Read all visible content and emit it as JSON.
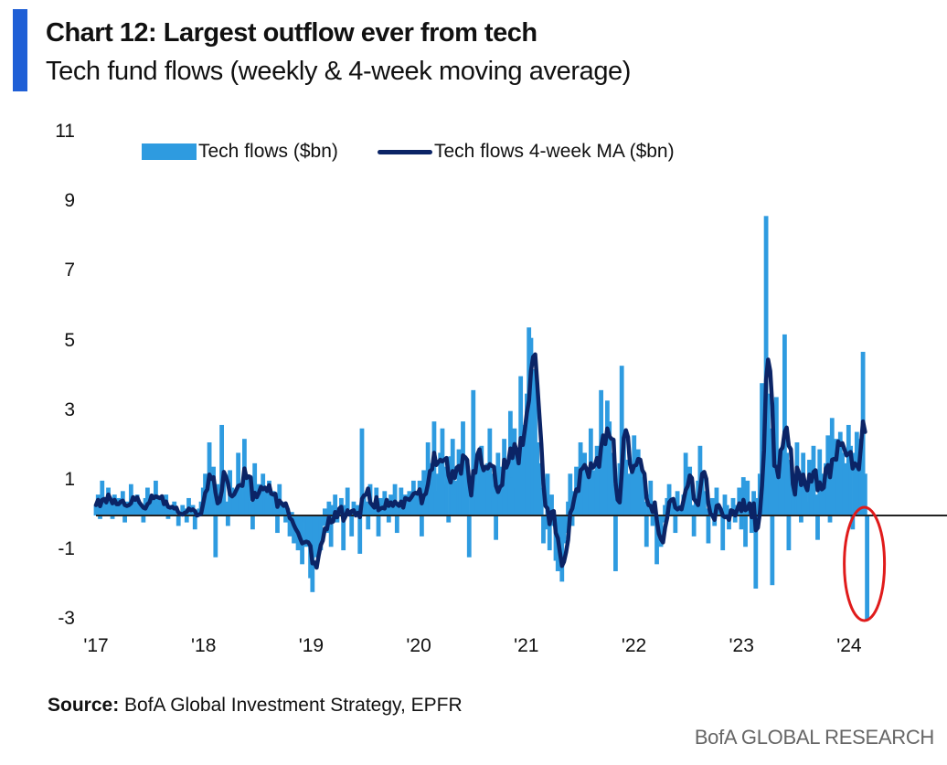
{
  "header": {
    "title": "Chart 12: Largest outflow ever from tech",
    "subtitle": "Tech fund flows (weekly & 4-week moving average)"
  },
  "source": {
    "label": "Source:",
    "text": " BofA Global Investment Strategy, EPFR"
  },
  "footer": "BofA GLOBAL RESEARCH",
  "colors": {
    "bars": "#2e9be0",
    "line": "#0b2466",
    "highlight": "#e01b1b",
    "accent": "#1f5fd6"
  },
  "chart_data": {
    "type": "bar+line",
    "legend": [
      "Tech flows ($bn)",
      "Tech flows 4-week MA ($bn)"
    ],
    "legend_position": "top",
    "ylim": [
      -3,
      11
    ],
    "yticks": [
      "11",
      "9",
      "7",
      "5",
      "3",
      "1",
      "-1",
      "-3"
    ],
    "ytick_values": [
      11,
      9,
      7,
      5,
      3,
      1,
      -1,
      -3
    ],
    "xticks": [
      "'17",
      "'18",
      "'19",
      "'20",
      "'21",
      "'22",
      "'23",
      "'24"
    ],
    "x_start_year": 2017,
    "frequency": "weekly",
    "grid": false,
    "annotation": "red ellipse around final week outflow (~-3.0)",
    "series": [
      {
        "name": "Tech flows ($bn)",
        "type": "bar",
        "values": [
          0.3,
          0.6,
          -0.1,
          1.0,
          0.4,
          0.2,
          0.8,
          0.5,
          -0.1,
          0.6,
          0.3,
          0.5,
          0.2,
          0.7,
          -0.2,
          0.4,
          0.3,
          0.9,
          0.5,
          0.1,
          0.6,
          0.3,
          0.2,
          -0.2,
          0.5,
          0.8,
          0.4,
          0.6,
          0.2,
          1.0,
          0.3,
          0.5,
          0.4,
          0.1,
          0.6,
          -0.1,
          0.3,
          0.2,
          0.4,
          0.0,
          -0.3,
          0.1,
          0.3,
          0.2,
          -0.2,
          0.5,
          0.1,
          0.3,
          -0.4,
          0.0,
          0.2,
          0.4,
          0.8,
          1.2,
          0.6,
          2.1,
          0.3,
          1.4,
          -1.2,
          0.9,
          0.5,
          2.6,
          1.0,
          0.4,
          -0.3,
          1.3,
          0.8,
          0.6,
          0.2,
          1.8,
          0.9,
          0.5,
          2.2,
          0.7,
          1.1,
          0.4,
          -0.4,
          1.5,
          0.6,
          0.9,
          0.3,
          1.2,
          0.8,
          0.5,
          1.0,
          0.2,
          0.7,
          0.6,
          -0.5,
          0.9,
          0.4,
          0.3,
          -0.2,
          0.2,
          -0.6,
          0.1,
          -0.8,
          -0.3,
          -1.0,
          -0.5,
          -1.4,
          -0.2,
          -0.9,
          -0.6,
          -1.8,
          -2.2,
          -0.8,
          -1.2,
          -0.4,
          -1.0,
          -0.3,
          0.2,
          -0.5,
          0.4,
          -0.9,
          0.3,
          0.6,
          -0.2,
          0.1,
          0.5,
          -1.0,
          0.3,
          0.8,
          0.0,
          -0.6,
          0.4,
          0.2,
          0.3,
          -1.1,
          2.5,
          0.6,
          0.4,
          -0.4,
          0.9,
          0.3,
          0.1,
          0.8,
          -0.6,
          0.5,
          0.2,
          0.7,
          0.4,
          -0.2,
          0.6,
          0.3,
          0.9,
          -0.5,
          0.4,
          0.8,
          0.2,
          0.6,
          0.3,
          0.7,
          0.5,
          1.0,
          0.4,
          0.6,
          1.0,
          -0.6,
          1.3,
          0.8,
          2.1,
          0.9,
          1.5,
          2.7,
          0.7,
          1.2,
          1.8,
          2.5,
          0.9,
          1.4,
          -0.2,
          1.7,
          2.2,
          0.6,
          1.0,
          1.9,
          1.3,
          2.7,
          0.8,
          1.6,
          -1.2,
          1.1,
          3.6,
          1.4,
          0.9,
          1.7,
          2.0,
          0.6,
          1.3,
          1.5,
          2.5,
          0.4,
          1.2,
          -0.7,
          1.8,
          1.0,
          1.4,
          2.2,
          0.9,
          1.6,
          3.0,
          1.1,
          2.5,
          0.8,
          1.6,
          4.0,
          1.7,
          2.6,
          3.5,
          5.4,
          5.1,
          4.2,
          3.8,
          2.1,
          1.5,
          0.8,
          -0.8,
          -0.4,
          1.2,
          -1.0,
          0.6,
          -0.3,
          -1.3,
          -1.6,
          -1.0,
          -1.9,
          -0.8,
          -0.5,
          0.4,
          1.2,
          -0.3,
          0.7,
          1.4,
          1.0,
          2.1,
          0.9,
          1.8,
          0.5,
          1.2,
          2.5,
          1.3,
          0.8,
          2.0,
          1.5,
          3.6,
          2.1,
          1.0,
          3.3,
          2.7,
          1.8,
          0.9,
          -1.6,
          0.7,
          1.5,
          4.3,
          2.4,
          1.6,
          0.7,
          1.2,
          1.5,
          2.3,
          0.8,
          1.9,
          1.4,
          1.1,
          0.4,
          -0.9,
          0.6,
          1.0,
          -0.3,
          0.2,
          -1.4,
          -0.6,
          -0.9,
          -0.2,
          0.3,
          0.5,
          0.9,
          0.1,
          0.4,
          -0.5,
          0.7,
          0.3,
          0.2,
          0.6,
          1.8,
          0.8,
          1.4,
          0.3,
          -0.6,
          0.5,
          1.0,
          2.0,
          1.3,
          0.7,
          0.2,
          -0.8,
          0.1,
          0.5,
          -0.3,
          0.8,
          0.2,
          0.0,
          -1.0,
          0.6,
          0.3,
          -0.4,
          0.1,
          0.5,
          -0.2,
          0.3,
          0.8,
          -0.4,
          1.1,
          -0.9,
          1.0,
          0.2,
          -0.5,
          0.7,
          -2.1,
          0.5,
          1.2,
          3.8,
          2.0,
          8.6,
          3.5,
          2.5,
          -2.0,
          1.7,
          3.4,
          1.3,
          1.1,
          2.0,
          5.2,
          1.8,
          -1.0,
          1.6,
          1.2,
          0.6,
          2.1,
          1.0,
          -0.2,
          1.8,
          0.9,
          0.4,
          1.6,
          1.0,
          2.0,
          0.6,
          -0.7,
          1.9,
          1.2,
          0.8,
          1.5,
          2.3,
          -0.2,
          2.8,
          1.6,
          2.2,
          1.9,
          2.4,
          1.8,
          1.5,
          1.2,
          2.6,
          2.0,
          -0.4,
          1.8,
          2.4,
          1.5,
          2.2,
          4.7,
          1.2,
          -3.0
        ]
      },
      {
        "name": "Tech flows 4-week MA ($bn)",
        "type": "line",
        "derived_from": "Tech flows ($bn)",
        "window": 4
      }
    ]
  }
}
